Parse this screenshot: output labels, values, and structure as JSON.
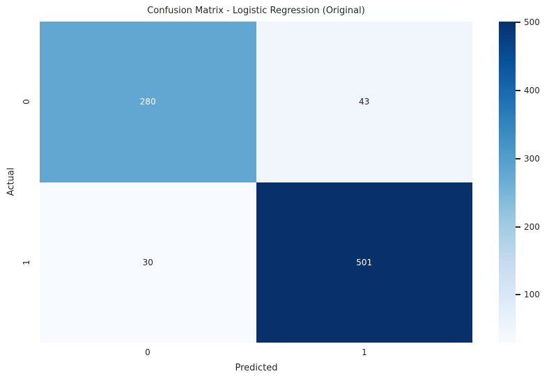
{
  "title": "Confusion Matrix - Logistic Regression (Original)",
  "colors": {
    "background": "#ffffff",
    "text": "#262626",
    "annotation_light": "#ffffff",
    "annotation_dark": "#262626"
  },
  "chart_data": {
    "type": "heatmap",
    "title": "Confusion Matrix - Logistic Regression (Original)",
    "xlabel": "Predicted",
    "ylabel": "Actual",
    "x_tick_labels": [
      "0",
      "1"
    ],
    "y_tick_labels": [
      "0",
      "1"
    ],
    "matrix": [
      [
        280,
        43
      ],
      [
        30,
        501
      ]
    ],
    "cells": [
      {
        "actual": "0",
        "predicted": "0",
        "value": "280",
        "bg": "#61a7d2",
        "fg": "#ffffff"
      },
      {
        "actual": "0",
        "predicted": "1",
        "value": "43",
        "bg": "#f0f6fc",
        "fg": "#262626"
      },
      {
        "actual": "1",
        "predicted": "0",
        "value": "30",
        "bg": "#f7fbff",
        "fg": "#262626"
      },
      {
        "actual": "1",
        "predicted": "1",
        "value": "501",
        "bg": "#08306b",
        "fg": "#ffffff"
      }
    ],
    "colormap": "Blues",
    "grid": false,
    "legend_position": "right",
    "colorbar": {
      "min": 30,
      "max": 501,
      "ticks": [
        100,
        200,
        300,
        400,
        500
      ],
      "tick_labels": [
        "100",
        "200",
        "300",
        "400",
        "500"
      ],
      "gradient_stops": [
        "#f7fbff",
        "#deebf7",
        "#c6dbef",
        "#9ecae1",
        "#6baed6",
        "#4292c6",
        "#2171b5",
        "#08519c",
        "#08306b"
      ]
    }
  }
}
